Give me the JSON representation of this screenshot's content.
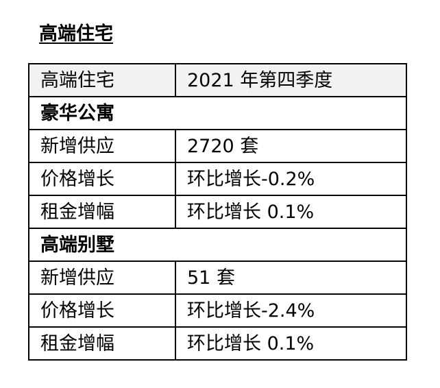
{
  "title": "高端住宅",
  "header": {
    "col1": "高端住宅",
    "col2": "2021 年第四季度"
  },
  "sections": [
    {
      "name": "豪华公寓",
      "rows": [
        {
          "label": "新增供应",
          "value": "2720 套"
        },
        {
          "label": "价格增长",
          "value": "环比增长-0.2%"
        },
        {
          "label": "租金增幅",
          "value": "环比增长 0.1%"
        }
      ]
    },
    {
      "name": "高端别墅",
      "rows": [
        {
          "label": "新增供应",
          "value": "51 套"
        },
        {
          "label": "价格增长",
          "value": "环比增长-2.4%"
        },
        {
          "label": "租金增幅",
          "value": "环比增长 0.1%"
        }
      ]
    }
  ]
}
